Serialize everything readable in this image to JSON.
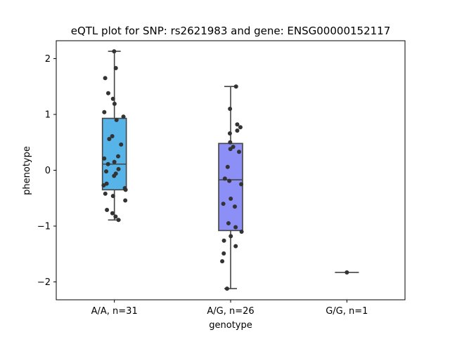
{
  "chart_data": {
    "type": "box",
    "title": "eQTL plot for SNP: rs2621983 and gene: ENSG00000152117",
    "xlabel": "genotype",
    "ylabel": "phenotype",
    "ylim": [
      -2.32,
      2.32
    ],
    "yticks": [
      -2,
      -1,
      0,
      1,
      2
    ],
    "grid": false,
    "groups": [
      {
        "label": "A/A, n=31",
        "color": "#56b4e9",
        "q1": -0.35,
        "median": 0.11,
        "q3": 0.93,
        "whisker_low": -0.89,
        "whisker_high": 2.13,
        "points": [
          2.13,
          1.83,
          1.65,
          1.38,
          1.28,
          1.19,
          1.04,
          0.96,
          0.9,
          0.61,
          0.56,
          0.46,
          0.25,
          0.21,
          0.15,
          0.11,
          0.02,
          -0.02,
          -0.06,
          -0.1,
          -0.24,
          -0.27,
          -0.32,
          -0.35,
          -0.42,
          -0.46,
          -0.54,
          -0.71,
          -0.77,
          -0.83,
          -0.89
        ]
      },
      {
        "label": "A/G, n=26",
        "color": "#8c8ff5",
        "q1": -1.08,
        "median": -0.17,
        "q3": 0.48,
        "whisker_low": -2.12,
        "whisker_high": 1.5,
        "points": [
          1.5,
          1.1,
          0.82,
          0.77,
          0.71,
          0.66,
          0.5,
          0.42,
          0.38,
          0.33,
          0.06,
          -0.15,
          -0.19,
          -0.51,
          -0.6,
          -0.65,
          -0.95,
          -1.02,
          -1.1,
          -1.18,
          -1.26,
          -1.36,
          -1.49,
          -1.63,
          -2.12,
          -0.25
        ]
      },
      {
        "label": "G/G, n=1",
        "color": "#9a6ff0",
        "q1": -1.83,
        "median": -1.83,
        "q3": -1.83,
        "whisker_low": -1.83,
        "whisker_high": -1.83,
        "points": [
          -1.83
        ]
      }
    ]
  }
}
